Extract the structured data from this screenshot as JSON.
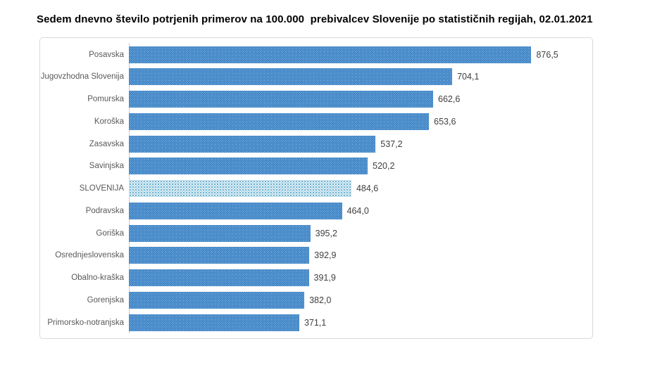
{
  "title": "Sedem dnevno število potrjenih primerov na 100.000  prebivalcev Slovenije po statističnih regijah, 02.01.2021",
  "chart_data": {
    "type": "bar",
    "orientation": "horizontal",
    "title": "Sedem dnevno število potrjenih primerov na 100.000  prebivalcev Slovenije po statističnih regijah, 02.01.2021",
    "xlabel": "",
    "ylabel": "",
    "xlim": [
      0,
      1000
    ],
    "grid": false,
    "legend": false,
    "categories": [
      "Posavska",
      "Jugovzhodna Slovenija",
      "Pomurska",
      "Koroška",
      "Zasavska",
      "Savinjska",
      "SLOVENIJA",
      "Podravska",
      "Goriška",
      "Osrednjeslovenska",
      "Obalno-kraška",
      "Gorenjska",
      "Primorsko-notranjska"
    ],
    "values": [
      876.5,
      704.1,
      662.6,
      653.6,
      537.2,
      520.2,
      484.6,
      464.0,
      395.2,
      392.9,
      391.9,
      382.0,
      371.1
    ],
    "value_labels": [
      "876,5",
      "704,1",
      "662,6",
      "653,6",
      "537,2",
      "520,2",
      "484,6",
      "464,0",
      "395,2",
      "392,9",
      "391,9",
      "382,0",
      "371,1"
    ],
    "highlight_category": "SLOVENIJA",
    "colors": {
      "bar_base": "#4a8ccc",
      "bar_dark": "#3a7cbe",
      "bar_light": "#5f9fd8",
      "highlight_base": "#d9edf4",
      "highlight_dot": "#4e9ec6",
      "label_color": "#595959",
      "value_color": "#3f3f3f",
      "border_color": "#d9d9d9",
      "axis_color": "#c9c9c9",
      "title_color": "#000000"
    }
  }
}
